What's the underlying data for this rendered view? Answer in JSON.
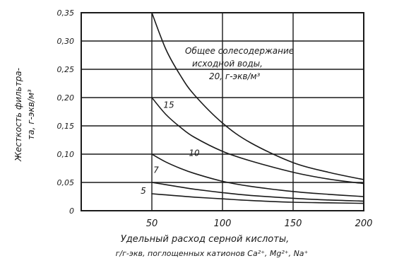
{
  "chart_data": {
    "type": "line",
    "ylabel_line1": "Жесткость фильтра-",
    "ylabel_line2": "та, г-экв/м³",
    "xlabel_line1": "Удельный расход серной кислоты,",
    "xlabel_line2": "г/г-экв, поглощенных катионов Ca²⁺, Mg²⁺, Na⁺",
    "annotation_lines": [
      "Общее солесодержание",
      "исходной воды,",
      "20, г-экв/м³"
    ],
    "xlim": [
      0,
      200
    ],
    "ylim": [
      0,
      0.35
    ],
    "x_ticks": [
      {
        "value": 50,
        "label": "50"
      },
      {
        "value": 100,
        "label": "100"
      },
      {
        "value": 150,
        "label": "150"
      },
      {
        "value": 200,
        "label": "200"
      }
    ],
    "y_ticks": [
      {
        "value": 0,
        "label": "0"
      },
      {
        "value": 0.05,
        "label": "0,05"
      },
      {
        "value": 0.1,
        "label": "0,10"
      },
      {
        "value": 0.15,
        "label": "0,15"
      },
      {
        "value": 0.2,
        "label": "0,20"
      },
      {
        "value": 0.25,
        "label": "0,25"
      },
      {
        "value": 0.3,
        "label": "0,30"
      },
      {
        "value": 0.35,
        "label": "0,35"
      }
    ],
    "grid": true,
    "series": [
      {
        "name": "20",
        "label_at": [
          123,
          0.312
        ],
        "x": [
          50,
          60,
          70,
          80,
          100,
          120,
          150,
          175,
          200
        ],
        "y": [
          0.35,
          0.285,
          0.24,
          0.205,
          0.155,
          0.12,
          0.085,
          0.068,
          0.055
        ]
      },
      {
        "name": "15",
        "label_at": [
          62,
          0.182
        ],
        "x": [
          50,
          60,
          70,
          80,
          100,
          120,
          150,
          175,
          200
        ],
        "y": [
          0.2,
          0.17,
          0.148,
          0.13,
          0.105,
          0.088,
          0.068,
          0.056,
          0.048
        ]
      },
      {
        "name": "10",
        "label_at": [
          80,
          0.097
        ],
        "x": [
          50,
          60,
          70,
          80,
          100,
          120,
          150,
          175,
          200
        ],
        "y": [
          0.1,
          0.086,
          0.075,
          0.066,
          0.052,
          0.043,
          0.034,
          0.029,
          0.025
        ]
      },
      {
        "name": "7",
        "label_at": [
          53,
          0.067
        ],
        "x": [
          50,
          60,
          70,
          80,
          100,
          120,
          150,
          175,
          200
        ],
        "y": [
          0.05,
          0.046,
          0.042,
          0.038,
          0.032,
          0.027,
          0.022,
          0.019,
          0.017
        ]
      },
      {
        "name": "5",
        "label_at": [
          44,
          0.03
        ],
        "x": [
          50,
          60,
          70,
          80,
          100,
          120,
          150,
          175,
          200
        ],
        "y": [
          0.03,
          0.028,
          0.026,
          0.024,
          0.021,
          0.018,
          0.015,
          0.014,
          0.013
        ]
      }
    ],
    "colors": {
      "ink": "#1a1a1a",
      "grid": "#1a1a1a"
    }
  }
}
